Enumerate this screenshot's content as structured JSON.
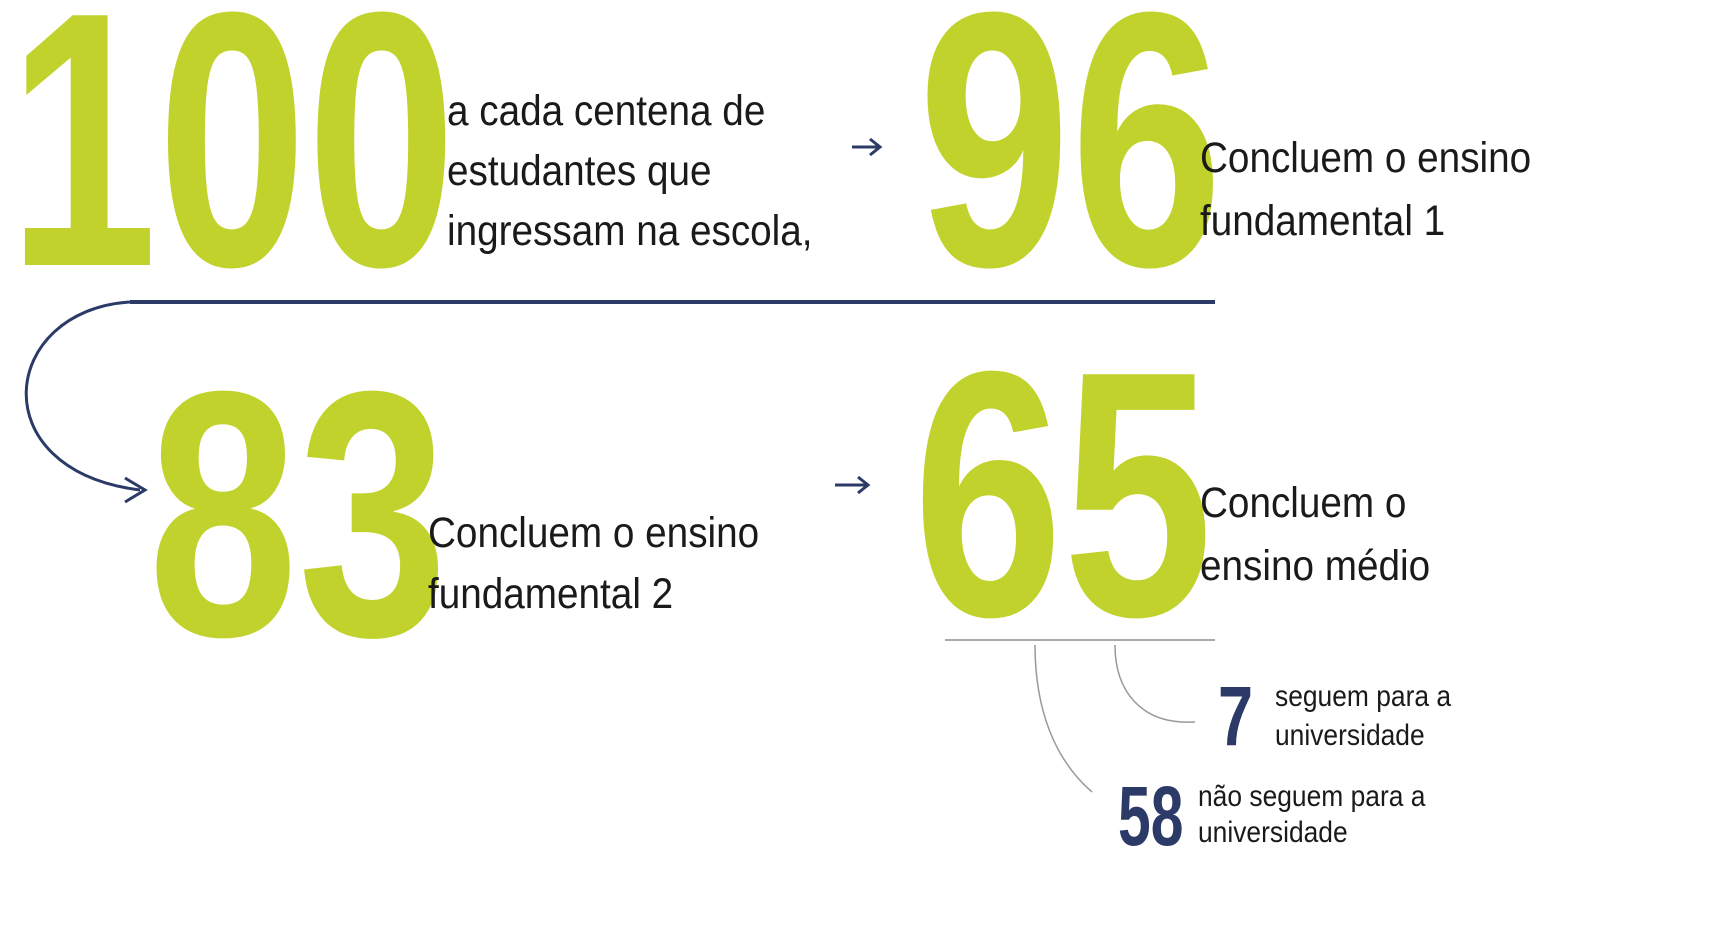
{
  "steps": [
    {
      "number": 100,
      "text": [
        "a cada centena de",
        "estudantes que",
        "ingressam na escola,"
      ]
    },
    {
      "number": 96,
      "text": [
        "Concluem o ensino",
        "fundamental 1"
      ]
    },
    {
      "number": 83,
      "text": [
        "Concluem o ensino",
        "fundamental 2"
      ]
    },
    {
      "number": 65,
      "text": [
        "Concluem o",
        "ensino médio"
      ]
    }
  ],
  "outcomes": [
    {
      "number": 7,
      "text": [
        "seguem para a",
        "universidade"
      ]
    },
    {
      "number": 58,
      "text": [
        "não seguem para a",
        "universidade"
      ]
    }
  ]
}
